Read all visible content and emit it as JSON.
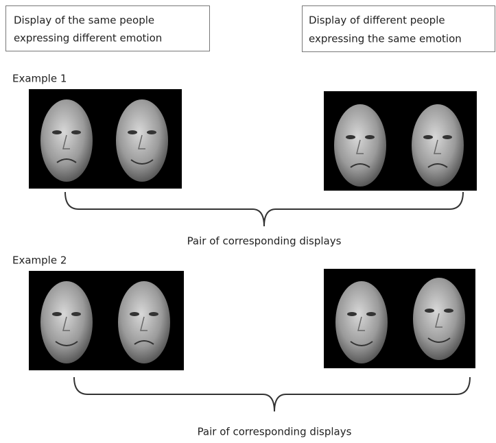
{
  "headers": [
    {
      "lines": [
        "Display of the same people",
        "expressing different emotion"
      ]
    },
    {
      "lines": [
        "Display of different people",
        "expressing the same emotion"
      ]
    }
  ],
  "examples": [
    {
      "label": "Example 1",
      "caption": "Pair of corresponding displays"
    },
    {
      "label": "Example 2",
      "caption": "Pair of corresponding displays"
    }
  ]
}
